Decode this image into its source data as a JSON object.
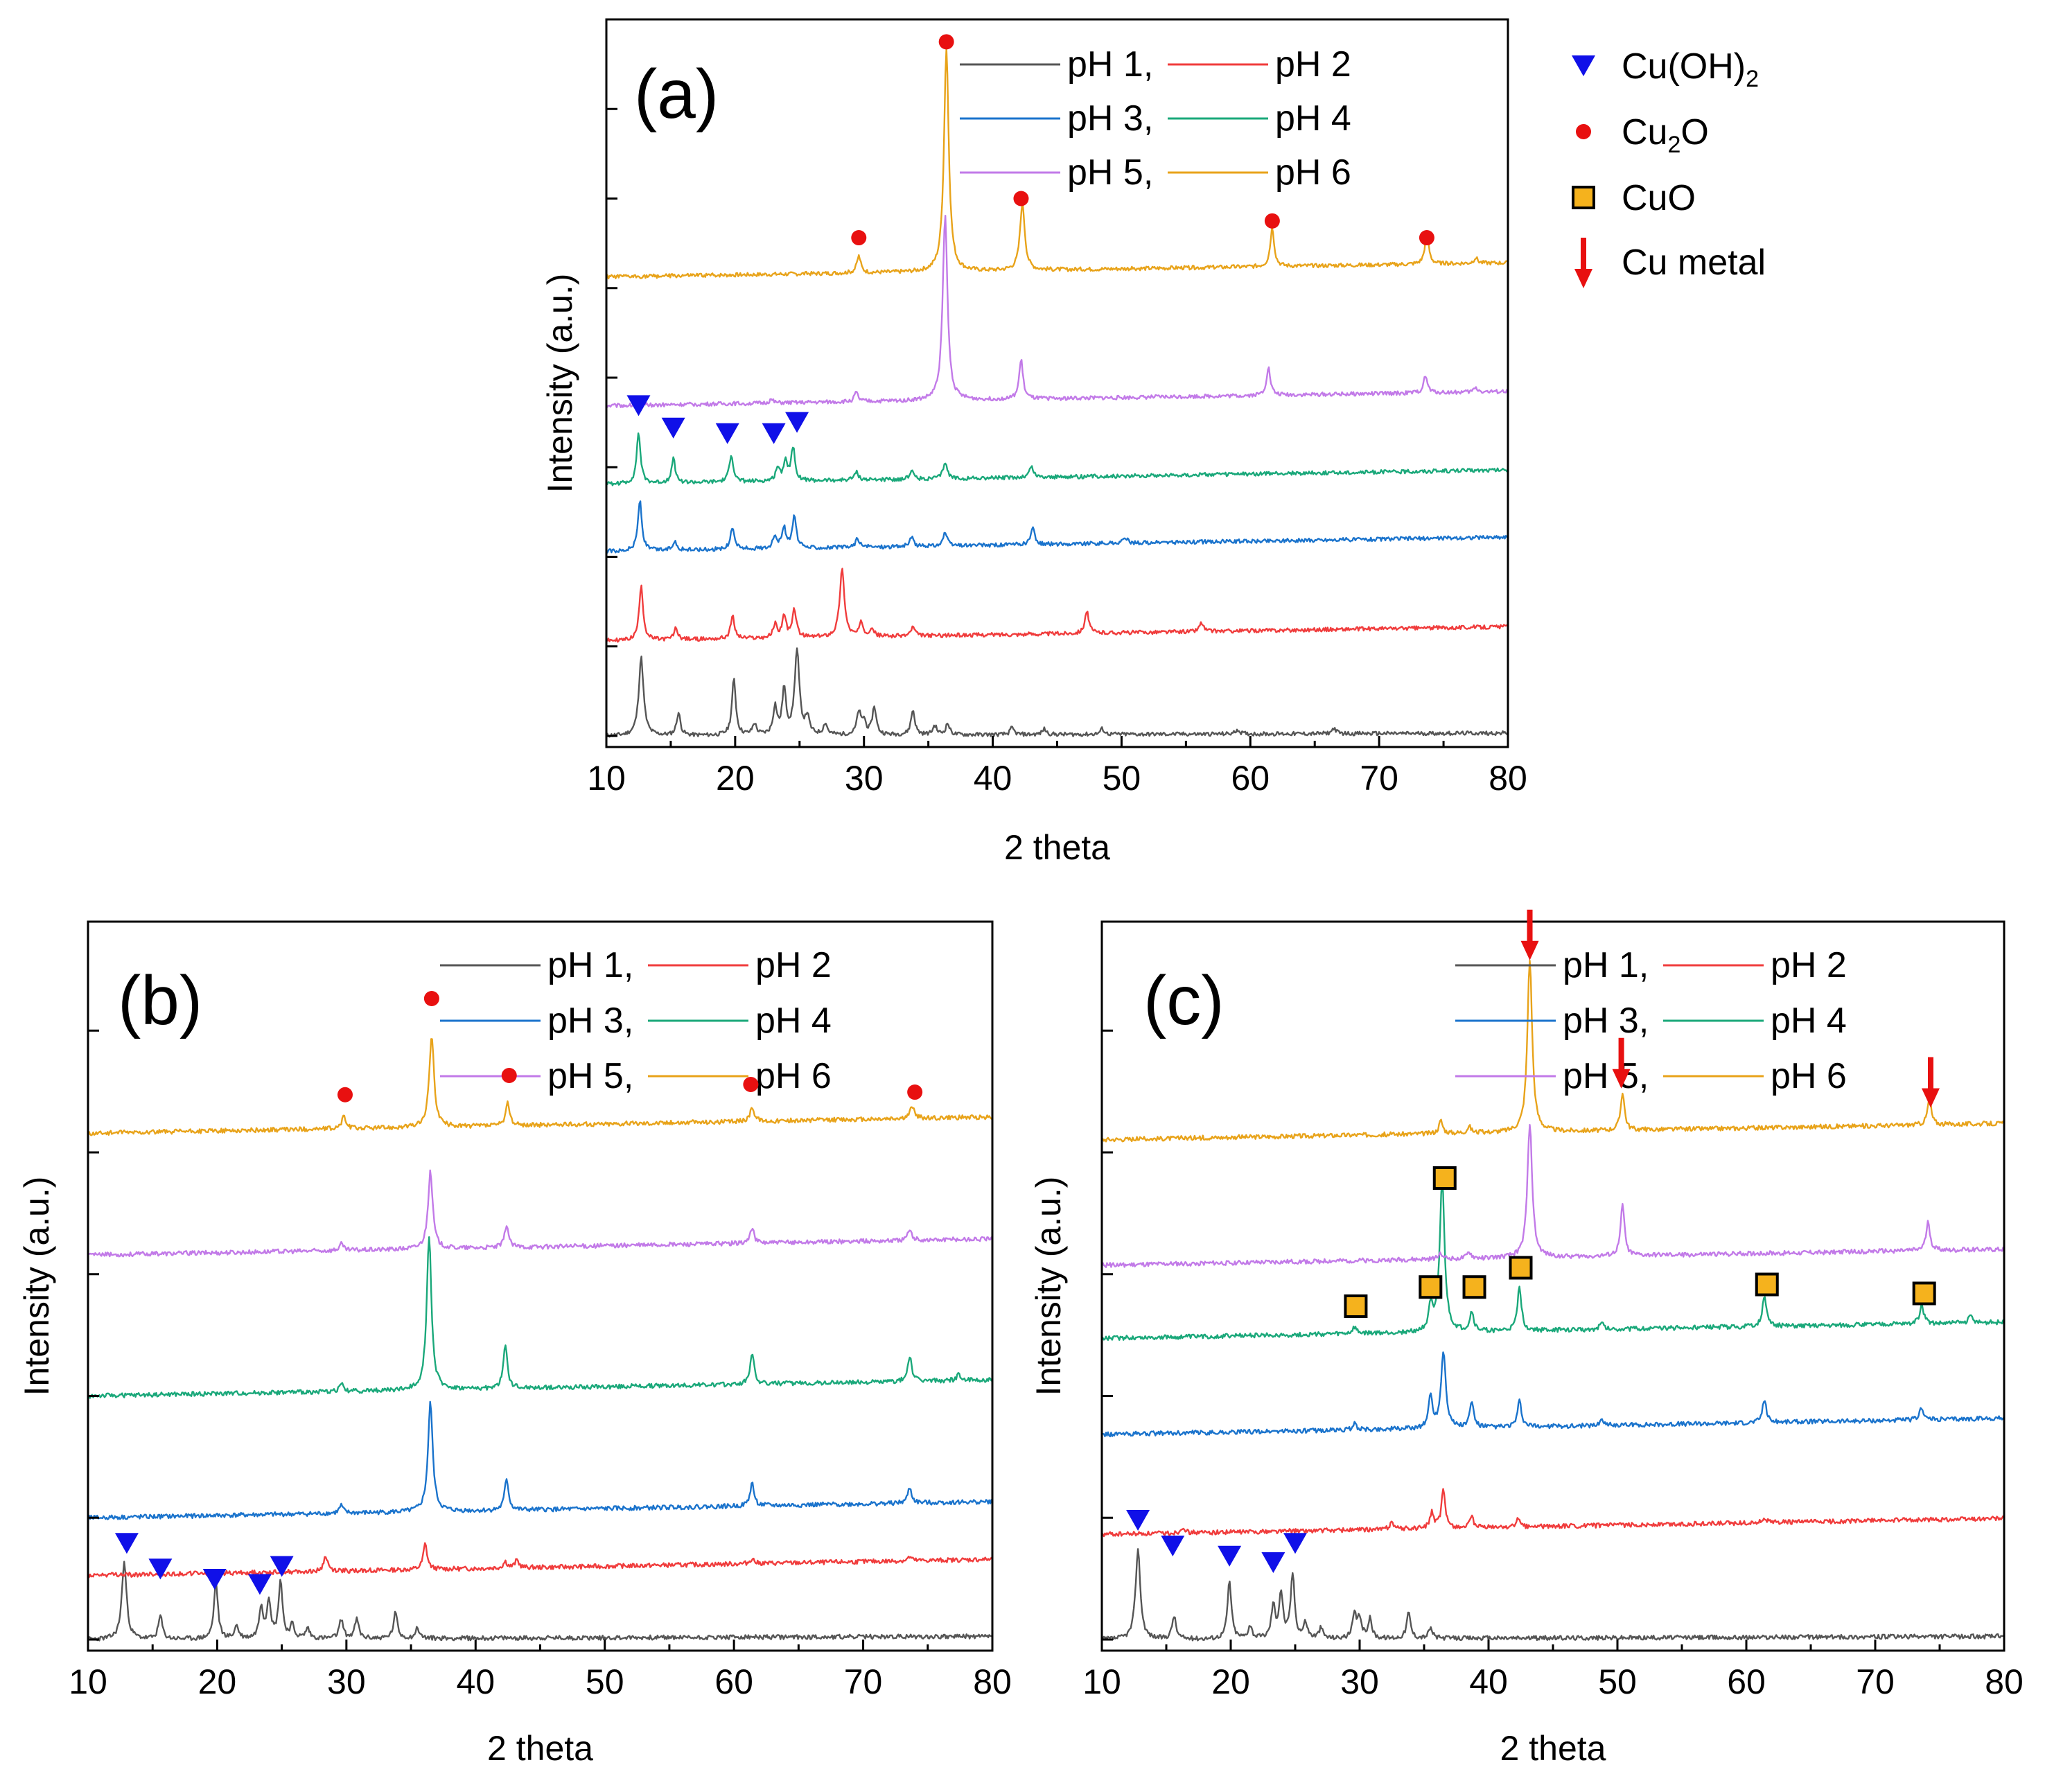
{
  "chart_data": [
    {
      "type": "line",
      "panel_label": "(a)",
      "xlabel": "2 theta",
      "ylabel": "Intensity (a.u.)",
      "xlim": [
        10,
        80
      ],
      "xticks": [
        10,
        20,
        30,
        40,
        50,
        60,
        70,
        80
      ],
      "xtick_labels": [
        "10",
        "20",
        "30",
        "40",
        "50",
        "60",
        "70",
        "80"
      ],
      "legend": [
        "pH 1,",
        "pH 2",
        "pH 3,",
        "pH 4",
        "pH 5,",
        "pH 6"
      ],
      "series": [
        {
          "name": "pH 1",
          "color": "#555555",
          "baseline": 0.0,
          "peaks": [
            [
              12.7,
              0.7
            ],
            [
              15.6,
              0.2
            ],
            [
              19.9,
              0.5
            ],
            [
              21.5,
              0.1
            ],
            [
              23.1,
              0.25
            ],
            [
              23.8,
              0.4
            ],
            [
              24.8,
              0.75
            ],
            [
              25.6,
              0.15
            ],
            [
              27.0,
              0.1
            ],
            [
              29.6,
              0.2
            ],
            [
              30.0,
              0.12
            ],
            [
              30.8,
              0.25
            ],
            [
              33.8,
              0.22
            ],
            [
              35.5,
              0.08
            ],
            [
              36.5,
              0.1
            ],
            [
              41.5,
              0.06
            ],
            [
              44.0,
              0.05
            ],
            [
              48.5,
              0.05
            ],
            [
              59.0,
              0.04
            ],
            [
              66.5,
              0.05
            ]
          ]
        },
        {
          "name": "pH 2",
          "color": "#f03c3c",
          "baseline": 0.85,
          "peaks": [
            [
              12.7,
              0.5
            ],
            [
              15.4,
              0.1
            ],
            [
              19.8,
              0.2
            ],
            [
              23.1,
              0.12
            ],
            [
              23.8,
              0.2
            ],
            [
              24.6,
              0.25
            ],
            [
              28.3,
              0.6
            ],
            [
              29.8,
              0.12
            ],
            [
              30.6,
              0.08
            ],
            [
              33.8,
              0.08
            ],
            [
              47.3,
              0.2
            ],
            [
              56.2,
              0.08
            ]
          ]
        },
        {
          "name": "pH 3",
          "color": "#1a73cc",
          "baseline": 1.65,
          "peaks": [
            [
              12.6,
              0.45
            ],
            [
              15.3,
              0.08
            ],
            [
              19.8,
              0.2
            ],
            [
              23.1,
              0.12
            ],
            [
              23.8,
              0.18
            ],
            [
              24.6,
              0.28
            ],
            [
              29.5,
              0.08
            ],
            [
              33.7,
              0.08
            ],
            [
              36.3,
              0.12
            ],
            [
              43.1,
              0.15
            ],
            [
              50.3,
              0.05
            ]
          ]
        },
        {
          "name": "pH 4",
          "color": "#1aa87a",
          "baseline": 2.25,
          "peaks": [
            [
              12.5,
              0.45
            ],
            [
              15.2,
              0.22
            ],
            [
              19.7,
              0.25
            ],
            [
              23.3,
              0.12
            ],
            [
              23.9,
              0.18
            ],
            [
              24.5,
              0.3
            ],
            [
              29.4,
              0.08
            ],
            [
              33.7,
              0.08
            ],
            [
              36.3,
              0.15
            ],
            [
              43.0,
              0.1
            ]
          ]
        },
        {
          "name": "pH 5",
          "color": "#c27ae8",
          "baseline": 2.95,
          "peaks": [
            [
              22.8,
              0.03
            ],
            [
              29.4,
              0.08
            ],
            [
              36.3,
              1.65
            ],
            [
              42.2,
              0.35
            ],
            [
              61.4,
              0.25
            ],
            [
              73.6,
              0.15
            ],
            [
              77.5,
              0.04
            ]
          ]
        },
        {
          "name": "pH 6",
          "color": "#e8a31a",
          "baseline": 4.1,
          "peaks": [
            [
              29.6,
              0.15
            ],
            [
              36.4,
              2.0
            ],
            [
              42.3,
              0.6
            ],
            [
              61.7,
              0.35
            ],
            [
              73.7,
              0.28
            ],
            [
              77.5,
              0.05
            ]
          ]
        }
      ],
      "annotations": [
        {
          "marker": "triangle",
          "label": "Cu(OH)2",
          "x": 12.5,
          "y": 2.95
        },
        {
          "marker": "triangle",
          "label": "Cu(OH)2",
          "x": 15.2,
          "y": 2.75
        },
        {
          "marker": "triangle",
          "label": "Cu(OH)2",
          "x": 19.4,
          "y": 2.7
        },
        {
          "marker": "triangle",
          "label": "Cu(OH)2",
          "x": 23.0,
          "y": 2.7
        },
        {
          "marker": "triangle",
          "label": "Cu(OH)2",
          "x": 24.8,
          "y": 2.8
        },
        {
          "marker": "circle",
          "label": "Cu2O",
          "x": 29.6,
          "y": 4.45
        },
        {
          "marker": "circle",
          "label": "Cu2O",
          "x": 36.4,
          "y": 6.2
        },
        {
          "marker": "circle",
          "label": "Cu2O",
          "x": 42.2,
          "y": 4.8
        },
        {
          "marker": "circle",
          "label": "Cu2O",
          "x": 61.7,
          "y": 4.6
        },
        {
          "marker": "circle",
          "label": "Cu2O",
          "x": 73.7,
          "y": 4.45
        }
      ]
    },
    {
      "type": "line",
      "panel_label": "(b)",
      "xlabel": "2 theta",
      "ylabel": "Intensity (a.u.)",
      "xlim": [
        10,
        80
      ],
      "xticks": [
        10,
        20,
        30,
        40,
        50,
        60,
        70,
        80
      ],
      "xtick_labels": [
        "10",
        "20",
        "30",
        "40",
        "50",
        "60",
        "70",
        "80"
      ],
      "legend": [
        "pH 1,",
        "pH 2",
        "pH 3,",
        "pH 4",
        "pH 5,",
        "pH 6"
      ],
      "series": [
        {
          "name": "pH 1",
          "color": "#555555",
          "baseline": 0.0,
          "peaks": [
            [
              12.8,
              0.6
            ],
            [
              15.6,
              0.18
            ],
            [
              19.9,
              0.45
            ],
            [
              21.5,
              0.1
            ],
            [
              23.4,
              0.25
            ],
            [
              24.0,
              0.3
            ],
            [
              24.9,
              0.45
            ],
            [
              25.8,
              0.1
            ],
            [
              27.0,
              0.08
            ],
            [
              29.6,
              0.15
            ],
            [
              30.8,
              0.15
            ],
            [
              33.8,
              0.2
            ],
            [
              35.5,
              0.08
            ]
          ]
        },
        {
          "name": "pH 2",
          "color": "#f03c3c",
          "baseline": 0.5,
          "peaks": [
            [
              28.4,
              0.12
            ],
            [
              36.1,
              0.2
            ],
            [
              42.3,
              0.05
            ],
            [
              43.2,
              0.06
            ],
            [
              61.4,
              0.04
            ],
            [
              73.6,
              0.03
            ]
          ]
        },
        {
          "name": "pH 3",
          "color": "#1a73cc",
          "baseline": 0.95,
          "peaks": [
            [
              29.6,
              0.06
            ],
            [
              36.5,
              0.85
            ],
            [
              42.4,
              0.25
            ],
            [
              61.4,
              0.18
            ],
            [
              73.6,
              0.12
            ]
          ]
        },
        {
          "name": "pH 4",
          "color": "#1aa87a",
          "baseline": 1.9,
          "peaks": [
            [
              29.6,
              0.06
            ],
            [
              36.4,
              1.2
            ],
            [
              42.3,
              0.35
            ],
            [
              61.4,
              0.25
            ],
            [
              73.6,
              0.2
            ],
            [
              77.4,
              0.05
            ]
          ]
        },
        {
          "name": "pH 5",
          "color": "#c27ae8",
          "baseline": 3.0,
          "peaks": [
            [
              29.6,
              0.05
            ],
            [
              36.5,
              0.6
            ],
            [
              42.4,
              0.18
            ],
            [
              61.4,
              0.12
            ],
            [
              73.6,
              0.08
            ]
          ]
        },
        {
          "name": "pH 6",
          "color": "#e8a31a",
          "baseline": 3.95,
          "peaks": [
            [
              29.8,
              0.1
            ],
            [
              36.6,
              0.72
            ],
            [
              42.5,
              0.18
            ],
            [
              61.4,
              0.12
            ],
            [
              73.8,
              0.1
            ]
          ]
        }
      ],
      "annotations": [
        {
          "marker": "triangle",
          "label": "Cu(OH)2",
          "x": 13.0,
          "y": 0.75
        },
        {
          "marker": "triangle",
          "label": "Cu(OH)2",
          "x": 15.6,
          "y": 0.55
        },
        {
          "marker": "triangle",
          "label": "Cu(OH)2",
          "x": 19.8,
          "y": 0.47
        },
        {
          "marker": "triangle",
          "label": "Cu(OH)2",
          "x": 23.3,
          "y": 0.43
        },
        {
          "marker": "triangle",
          "label": "Cu(OH)2",
          "x": 25.0,
          "y": 0.57
        },
        {
          "marker": "circle",
          "label": "Cu2O",
          "x": 29.9,
          "y": 4.25
        },
        {
          "marker": "circle",
          "label": "Cu2O",
          "x": 36.6,
          "y": 5.0
        },
        {
          "marker": "circle",
          "label": "Cu2O",
          "x": 42.6,
          "y": 4.4
        },
        {
          "marker": "circle",
          "label": "Cu2O",
          "x": 61.3,
          "y": 4.33
        },
        {
          "marker": "circle",
          "label": "Cu2O",
          "x": 74.0,
          "y": 4.27
        }
      ]
    },
    {
      "type": "line",
      "panel_label": "(c)",
      "xlabel": "2 theta",
      "ylabel": "Intensity (a.u.)",
      "xlim": [
        10,
        80
      ],
      "xticks": [
        10,
        20,
        30,
        40,
        50,
        60,
        70,
        80
      ],
      "xtick_labels": [
        "10",
        "20",
        "30",
        "40",
        "50",
        "60",
        "70",
        "80"
      ],
      "legend": [
        "pH 1,",
        "pH 2",
        "pH 3,",
        "pH 4",
        "pH 5,",
        "pH 6"
      ],
      "series": [
        {
          "name": "pH 1",
          "color": "#555555",
          "baseline": 0.0,
          "peaks": [
            [
              12.8,
              0.7
            ],
            [
              15.6,
              0.18
            ],
            [
              19.9,
              0.45
            ],
            [
              21.5,
              0.1
            ],
            [
              23.3,
              0.25
            ],
            [
              23.9,
              0.35
            ],
            [
              24.8,
              0.5
            ],
            [
              25.8,
              0.12
            ],
            [
              27.0,
              0.08
            ],
            [
              29.6,
              0.18
            ],
            [
              30.0,
              0.15
            ],
            [
              30.8,
              0.15
            ],
            [
              33.8,
              0.2
            ],
            [
              35.5,
              0.08
            ]
          ]
        },
        {
          "name": "pH 2",
          "color": "#f03c3c",
          "baseline": 0.82,
          "peaks": [
            [
              16.3,
              0.05
            ],
            [
              32.5,
              0.06
            ],
            [
              35.6,
              0.12
            ],
            [
              36.5,
              0.3
            ],
            [
              38.7,
              0.08
            ],
            [
              42.3,
              0.06
            ],
            [
              61.4,
              0.04
            ]
          ]
        },
        {
          "name": "pH 3",
          "color": "#1a73cc",
          "baseline": 1.6,
          "peaks": [
            [
              29.6,
              0.05
            ],
            [
              35.5,
              0.25
            ],
            [
              36.5,
              0.6
            ],
            [
              38.7,
              0.2
            ],
            [
              42.4,
              0.2
            ],
            [
              48.8,
              0.05
            ],
            [
              61.4,
              0.18
            ],
            [
              73.6,
              0.1
            ]
          ]
        },
        {
          "name": "pH 4",
          "color": "#1aa87a",
          "baseline": 2.35,
          "peaks": [
            [
              29.6,
              0.05
            ],
            [
              35.5,
              0.2
            ],
            [
              36.4,
              1.2
            ],
            [
              38.7,
              0.15
            ],
            [
              42.4,
              0.35
            ],
            [
              48.8,
              0.05
            ],
            [
              61.4,
              0.25
            ],
            [
              73.6,
              0.15
            ],
            [
              77.4,
              0.05
            ]
          ]
        },
        {
          "name": "pH 5",
          "color": "#c27ae8",
          "baseline": 2.92,
          "peaks": [
            [
              36.3,
              0.05
            ],
            [
              38.5,
              0.05
            ],
            [
              43.2,
              1.05
            ],
            [
              50.4,
              0.4
            ],
            [
              74.1,
              0.22
            ]
          ]
        },
        {
          "name": "pH 6",
          "color": "#e8a31a",
          "baseline": 3.9,
          "peaks": [
            [
              36.3,
              0.1
            ],
            [
              38.5,
              0.05
            ],
            [
              43.2,
              1.35
            ],
            [
              50.4,
              0.3
            ],
            [
              74.2,
              0.2
            ]
          ]
        }
      ],
      "annotations": [
        {
          "marker": "triangle",
          "label": "Cu(OH)2",
          "x": 12.8,
          "y": 0.93
        },
        {
          "marker": "triangle",
          "label": "Cu(OH)2",
          "x": 15.5,
          "y": 0.73
        },
        {
          "marker": "triangle",
          "label": "Cu(OH)2",
          "x": 19.9,
          "y": 0.65
        },
        {
          "marker": "triangle",
          "label": "Cu(OH)2",
          "x": 23.3,
          "y": 0.6
        },
        {
          "marker": "triangle",
          "label": "Cu(OH)2",
          "x": 25.0,
          "y": 0.75
        },
        {
          "marker": "square",
          "label": "CuO",
          "x": 29.7,
          "y": 2.6
        },
        {
          "marker": "square",
          "label": "CuO",
          "x": 35.5,
          "y": 2.75
        },
        {
          "marker": "square",
          "label": "CuO",
          "x": 36.6,
          "y": 3.6
        },
        {
          "marker": "square",
          "label": "CuO",
          "x": 38.9,
          "y": 2.75
        },
        {
          "marker": "square",
          "label": "CuO",
          "x": 42.5,
          "y": 2.9
        },
        {
          "marker": "square",
          "label": "CuO",
          "x": 61.6,
          "y": 2.77
        },
        {
          "marker": "square",
          "label": "CuO",
          "x": 73.8,
          "y": 2.7
        },
        {
          "marker": "arrow",
          "label": "Cu metal",
          "x": 43.2,
          "y": 5.45
        },
        {
          "marker": "arrow",
          "label": "Cu metal",
          "x": 50.3,
          "y": 4.45
        },
        {
          "marker": "arrow",
          "label": "Cu metal",
          "x": 74.3,
          "y": 4.3
        }
      ]
    }
  ],
  "marker_legend": [
    {
      "marker": "triangle",
      "name": "Cu(OH)",
      "sub": "2",
      "tail": "",
      "color": "#1010e8"
    },
    {
      "marker": "circle",
      "name": "Cu",
      "sub": "2",
      "tail": "O",
      "color": "#e81010"
    },
    {
      "marker": "square",
      "name": "CuO",
      "sub": "",
      "tail": "",
      "color": "#f5b21d"
    },
    {
      "marker": "arrow",
      "name": "Cu metal",
      "sub": "",
      "tail": "",
      "color": "#e81010"
    }
  ],
  "colors": {
    "ph1": "#555555",
    "ph2": "#f03c3c",
    "ph3": "#1a73cc",
    "ph4": "#1aa87a",
    "ph5": "#c27ae8",
    "ph6": "#e8a31a",
    "triangle": "#1010e8",
    "circle": "#e81010",
    "square": "#f5b21d",
    "arrow": "#e81010"
  }
}
